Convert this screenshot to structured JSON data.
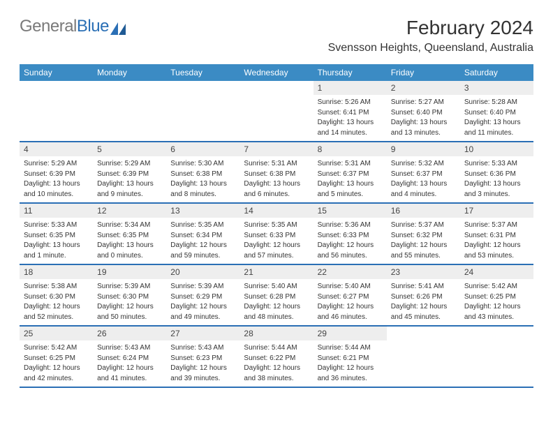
{
  "logo": {
    "part1": "General",
    "part2": "Blue"
  },
  "title": "February 2024",
  "location": "Svensson Heights, Queensland, Australia",
  "headerColor": "#3b8bc4",
  "borderColor": "#2a6fb5",
  "dayStripe": "#eeeeee",
  "dayNames": [
    "Sunday",
    "Monday",
    "Tuesday",
    "Wednesday",
    "Thursday",
    "Friday",
    "Saturday"
  ],
  "weeks": [
    [
      {
        "n": "",
        "sr": "",
        "ss": "",
        "dl1": "",
        "dl2": ""
      },
      {
        "n": "",
        "sr": "",
        "ss": "",
        "dl1": "",
        "dl2": ""
      },
      {
        "n": "",
        "sr": "",
        "ss": "",
        "dl1": "",
        "dl2": ""
      },
      {
        "n": "",
        "sr": "",
        "ss": "",
        "dl1": "",
        "dl2": ""
      },
      {
        "n": "1",
        "sr": "Sunrise: 5:26 AM",
        "ss": "Sunset: 6:41 PM",
        "dl1": "Daylight: 13 hours",
        "dl2": "and 14 minutes."
      },
      {
        "n": "2",
        "sr": "Sunrise: 5:27 AM",
        "ss": "Sunset: 6:40 PM",
        "dl1": "Daylight: 13 hours",
        "dl2": "and 13 minutes."
      },
      {
        "n": "3",
        "sr": "Sunrise: 5:28 AM",
        "ss": "Sunset: 6:40 PM",
        "dl1": "Daylight: 13 hours",
        "dl2": "and 11 minutes."
      }
    ],
    [
      {
        "n": "4",
        "sr": "Sunrise: 5:29 AM",
        "ss": "Sunset: 6:39 PM",
        "dl1": "Daylight: 13 hours",
        "dl2": "and 10 minutes."
      },
      {
        "n": "5",
        "sr": "Sunrise: 5:29 AM",
        "ss": "Sunset: 6:39 PM",
        "dl1": "Daylight: 13 hours",
        "dl2": "and 9 minutes."
      },
      {
        "n": "6",
        "sr": "Sunrise: 5:30 AM",
        "ss": "Sunset: 6:38 PM",
        "dl1": "Daylight: 13 hours",
        "dl2": "and 8 minutes."
      },
      {
        "n": "7",
        "sr": "Sunrise: 5:31 AM",
        "ss": "Sunset: 6:38 PM",
        "dl1": "Daylight: 13 hours",
        "dl2": "and 6 minutes."
      },
      {
        "n": "8",
        "sr": "Sunrise: 5:31 AM",
        "ss": "Sunset: 6:37 PM",
        "dl1": "Daylight: 13 hours",
        "dl2": "and 5 minutes."
      },
      {
        "n": "9",
        "sr": "Sunrise: 5:32 AM",
        "ss": "Sunset: 6:37 PM",
        "dl1": "Daylight: 13 hours",
        "dl2": "and 4 minutes."
      },
      {
        "n": "10",
        "sr": "Sunrise: 5:33 AM",
        "ss": "Sunset: 6:36 PM",
        "dl1": "Daylight: 13 hours",
        "dl2": "and 3 minutes."
      }
    ],
    [
      {
        "n": "11",
        "sr": "Sunrise: 5:33 AM",
        "ss": "Sunset: 6:35 PM",
        "dl1": "Daylight: 13 hours",
        "dl2": "and 1 minute."
      },
      {
        "n": "12",
        "sr": "Sunrise: 5:34 AM",
        "ss": "Sunset: 6:35 PM",
        "dl1": "Daylight: 13 hours",
        "dl2": "and 0 minutes."
      },
      {
        "n": "13",
        "sr": "Sunrise: 5:35 AM",
        "ss": "Sunset: 6:34 PM",
        "dl1": "Daylight: 12 hours",
        "dl2": "and 59 minutes."
      },
      {
        "n": "14",
        "sr": "Sunrise: 5:35 AM",
        "ss": "Sunset: 6:33 PM",
        "dl1": "Daylight: 12 hours",
        "dl2": "and 57 minutes."
      },
      {
        "n": "15",
        "sr": "Sunrise: 5:36 AM",
        "ss": "Sunset: 6:33 PM",
        "dl1": "Daylight: 12 hours",
        "dl2": "and 56 minutes."
      },
      {
        "n": "16",
        "sr": "Sunrise: 5:37 AM",
        "ss": "Sunset: 6:32 PM",
        "dl1": "Daylight: 12 hours",
        "dl2": "and 55 minutes."
      },
      {
        "n": "17",
        "sr": "Sunrise: 5:37 AM",
        "ss": "Sunset: 6:31 PM",
        "dl1": "Daylight: 12 hours",
        "dl2": "and 53 minutes."
      }
    ],
    [
      {
        "n": "18",
        "sr": "Sunrise: 5:38 AM",
        "ss": "Sunset: 6:30 PM",
        "dl1": "Daylight: 12 hours",
        "dl2": "and 52 minutes."
      },
      {
        "n": "19",
        "sr": "Sunrise: 5:39 AM",
        "ss": "Sunset: 6:30 PM",
        "dl1": "Daylight: 12 hours",
        "dl2": "and 50 minutes."
      },
      {
        "n": "20",
        "sr": "Sunrise: 5:39 AM",
        "ss": "Sunset: 6:29 PM",
        "dl1": "Daylight: 12 hours",
        "dl2": "and 49 minutes."
      },
      {
        "n": "21",
        "sr": "Sunrise: 5:40 AM",
        "ss": "Sunset: 6:28 PM",
        "dl1": "Daylight: 12 hours",
        "dl2": "and 48 minutes."
      },
      {
        "n": "22",
        "sr": "Sunrise: 5:40 AM",
        "ss": "Sunset: 6:27 PM",
        "dl1": "Daylight: 12 hours",
        "dl2": "and 46 minutes."
      },
      {
        "n": "23",
        "sr": "Sunrise: 5:41 AM",
        "ss": "Sunset: 6:26 PM",
        "dl1": "Daylight: 12 hours",
        "dl2": "and 45 minutes."
      },
      {
        "n": "24",
        "sr": "Sunrise: 5:42 AM",
        "ss": "Sunset: 6:25 PM",
        "dl1": "Daylight: 12 hours",
        "dl2": "and 43 minutes."
      }
    ],
    [
      {
        "n": "25",
        "sr": "Sunrise: 5:42 AM",
        "ss": "Sunset: 6:25 PM",
        "dl1": "Daylight: 12 hours",
        "dl2": "and 42 minutes."
      },
      {
        "n": "26",
        "sr": "Sunrise: 5:43 AM",
        "ss": "Sunset: 6:24 PM",
        "dl1": "Daylight: 12 hours",
        "dl2": "and 41 minutes."
      },
      {
        "n": "27",
        "sr": "Sunrise: 5:43 AM",
        "ss": "Sunset: 6:23 PM",
        "dl1": "Daylight: 12 hours",
        "dl2": "and 39 minutes."
      },
      {
        "n": "28",
        "sr": "Sunrise: 5:44 AM",
        "ss": "Sunset: 6:22 PM",
        "dl1": "Daylight: 12 hours",
        "dl2": "and 38 minutes."
      },
      {
        "n": "29",
        "sr": "Sunrise: 5:44 AM",
        "ss": "Sunset: 6:21 PM",
        "dl1": "Daylight: 12 hours",
        "dl2": "and 36 minutes."
      },
      {
        "n": "",
        "sr": "",
        "ss": "",
        "dl1": "",
        "dl2": ""
      },
      {
        "n": "",
        "sr": "",
        "ss": "",
        "dl1": "",
        "dl2": ""
      }
    ]
  ]
}
